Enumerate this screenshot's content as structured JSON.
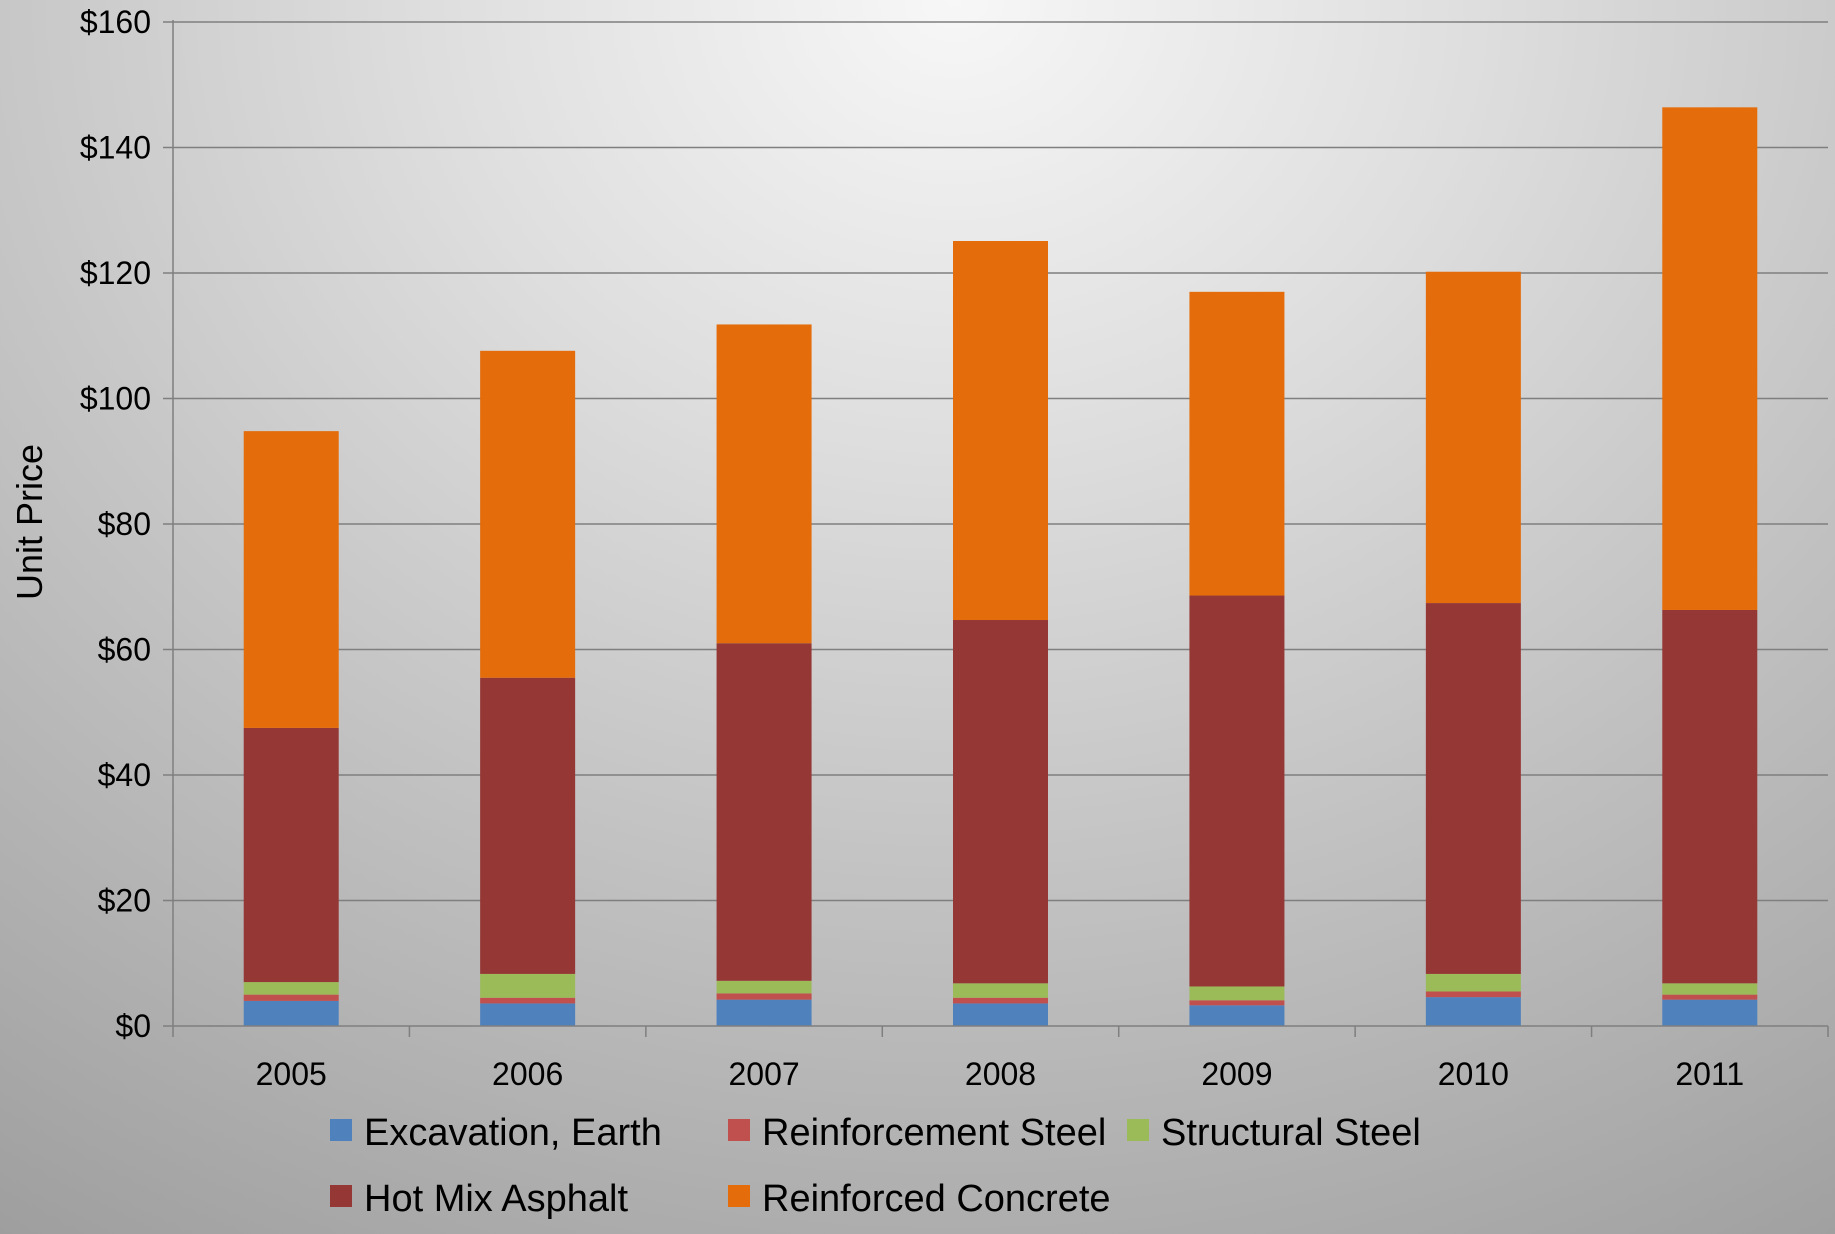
{
  "chart_data": {
    "type": "bar",
    "stacked": true,
    "title": "",
    "xlabel": "",
    "ylabel": "Unit Price",
    "ylim": [
      0,
      160
    ],
    "yticks": [
      "$0",
      "$20",
      "$40",
      "$60",
      "$80",
      "$100",
      "$120",
      "$140",
      "$160"
    ],
    "ytick_values": [
      0,
      20,
      40,
      60,
      80,
      100,
      120,
      140,
      160
    ],
    "grid": true,
    "legend_position": "bottom",
    "categories": [
      "2005",
      "2006",
      "2007",
      "2008",
      "2009",
      "2010",
      "2011"
    ],
    "series": [
      {
        "name": "Excavation, Earth",
        "color": "#4f81bd",
        "values": [
          4.0,
          3.6,
          4.2,
          3.6,
          3.3,
          4.6,
          4.2
        ]
      },
      {
        "name": "Reinforcement Steel",
        "color": "#c0504d",
        "values": [
          1.0,
          0.9,
          1.0,
          0.9,
          0.8,
          0.9,
          0.8
        ]
      },
      {
        "name": "Structural Steel",
        "color": "#9bbb59",
        "values": [
          2.0,
          3.8,
          2.0,
          2.3,
          2.2,
          2.8,
          1.8
        ]
      },
      {
        "name": "Hot Mix Asphalt",
        "color": "#953735",
        "values": [
          40.5,
          47.2,
          53.8,
          57.9,
          62.3,
          59.1,
          59.5
        ]
      },
      {
        "name": "Reinforced Concrete",
        "color": "#e46c0a",
        "values": [
          47.3,
          52.1,
          50.8,
          60.4,
          48.4,
          52.8,
          80.1
        ]
      }
    ]
  }
}
